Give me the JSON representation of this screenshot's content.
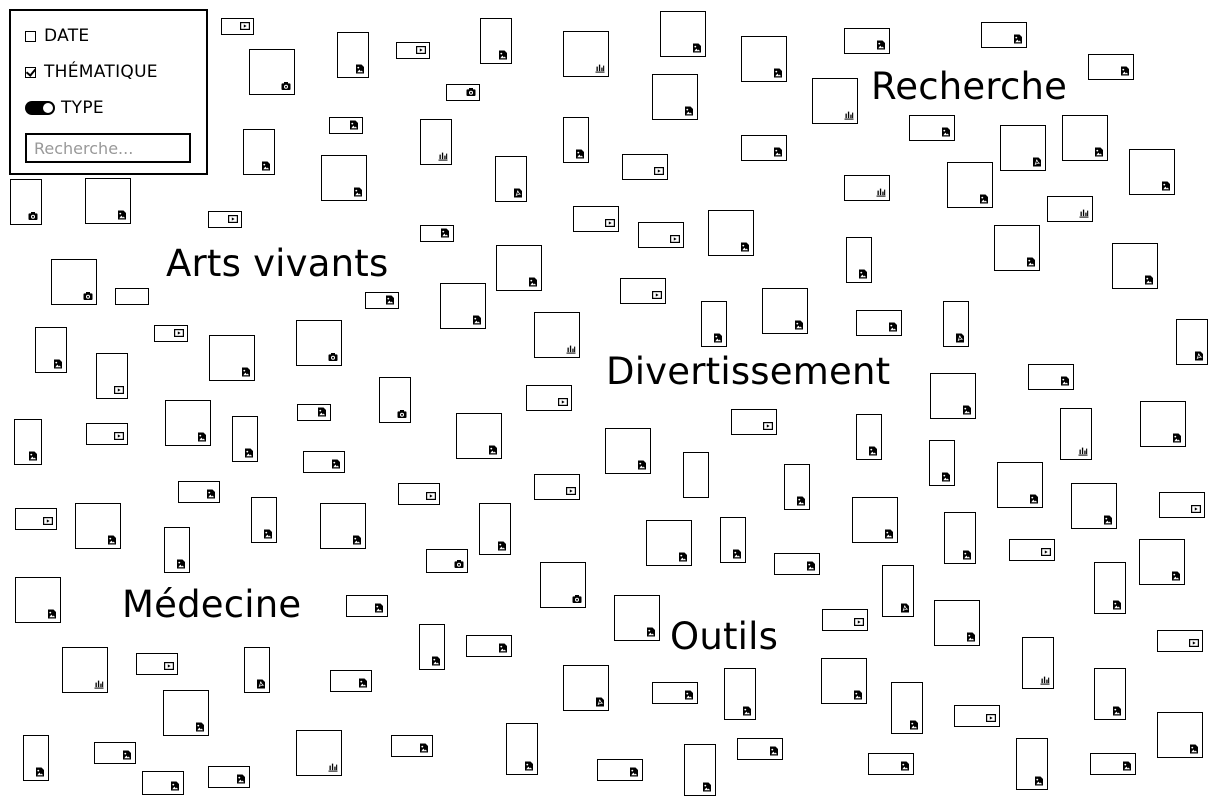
{
  "filters": {
    "date_label": "DATE",
    "theme_label": "THÉMATIQUE",
    "type_label": "TYPE",
    "search_placeholder": "Recherche..."
  },
  "categories": [
    {
      "label": "Recherche"
    },
    {
      "label": "Arts vivants"
    },
    {
      "label": "Divertissement"
    },
    {
      "label": "Médecine"
    },
    {
      "label": "Outils"
    }
  ],
  "icon_names": {
    "img": "image-icon",
    "vid": "video-icon",
    "cam": "camera-icon",
    "bar": "chart-icon",
    "pdf": "pdf-icon"
  }
}
